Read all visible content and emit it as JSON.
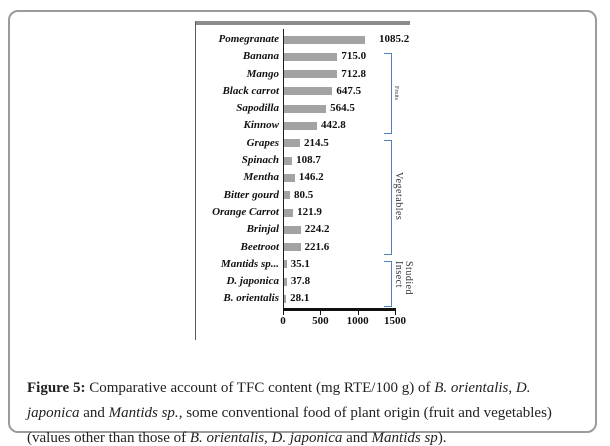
{
  "figure": {
    "caption_segments": [
      {
        "text": "Figure 5:",
        "style": "bold"
      },
      {
        "text": " Comparative account of TFC content (mg RTE/100 g) of ",
        "style": "normal"
      },
      {
        "text": "B. orientalis",
        "style": "italic"
      },
      {
        "text": ", ",
        "style": "normal"
      },
      {
        "text": "D. japonica",
        "style": "italic"
      },
      {
        "text": " and ",
        "style": "normal"
      },
      {
        "text": "Mantids sp.",
        "style": "italic"
      },
      {
        "text": ", some conventional food of plant origin (fruit and vegetables) (values other than those of ",
        "style": "normal"
      },
      {
        "text": "B. orientalis",
        "style": "italic"
      },
      {
        "text": ", ",
        "style": "normal"
      },
      {
        "text": "D. japonica",
        "style": "italic"
      },
      {
        "text": " and ",
        "style": "normal"
      },
      {
        "text": "Mantids sp",
        "style": "italic"
      },
      {
        "text": ").",
        "style": "normal"
      }
    ]
  },
  "chart_data": {
    "type": "bar",
    "orientation": "horizontal",
    "title": "",
    "xlabel": "",
    "ylabel": "",
    "xlim": [
      0,
      1500
    ],
    "x_ticks": [
      0,
      500,
      1000,
      1500
    ],
    "x_tick_labels": [
      "0",
      "500",
      "1000",
      "1500"
    ],
    "grid": false,
    "legend": false,
    "categories": [
      "Pomegranate",
      "Banana",
      "Mango",
      "Black carrot",
      "Sapodilla",
      "Kinnow",
      "Grapes",
      "Spinach",
      "Mentha",
      "Bitter gourd",
      "Orange Carrot",
      "Brinjal",
      "Beetroot",
      "Mantids sp...",
      "D. japonica",
      "B. orientalis"
    ],
    "values": [
      1085.2,
      715.0,
      712.8,
      647.5,
      564.5,
      442.8,
      214.5,
      108.7,
      146.2,
      80.5,
      121.9,
      224.2,
      221.6,
      35.1,
      37.8,
      28.1
    ],
    "value_labels": [
      "1085.2",
      "715.0",
      "712.8",
      "647.5",
      "564.5",
      "442.8",
      "214.5",
      "108.7",
      "146.2",
      "80.5",
      "121.9",
      "224.2",
      "221.6",
      "35.1",
      "37.8",
      "28.1"
    ],
    "groups": [
      {
        "label": "Fruits",
        "start_index": 1,
        "end_index": 5
      },
      {
        "label": "Vegetables",
        "start_index": 6,
        "end_index": 12
      },
      {
        "label": "Studied Insect",
        "start_index": 13,
        "end_index": 15
      }
    ],
    "colors": {
      "bar": "#a3a3a3",
      "bracket": "#4f81bd",
      "axis": "#1a1a1a",
      "frame": "#8c8c8c"
    }
  }
}
